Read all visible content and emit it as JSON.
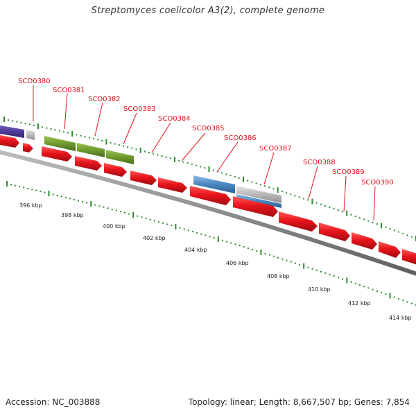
{
  "title": "Streptomyces coelicolor A3(2), complete genome",
  "footer": {
    "accession_label": "Accession:",
    "accession": "NC_003888",
    "topology_label": "Topology:",
    "topology": "linear",
    "length_label": "Length:",
    "length": "8,667,507 bp",
    "genes_label": "Genes:",
    "genes": "7,854"
  },
  "colors": {
    "gene_label": "#e3101a",
    "backbone": "#8c8c8c",
    "tick": "#2b8a2b",
    "red_gene": "#e8151c",
    "green_feature": "#6f9a2e",
    "blue_feature": "#4a86bf",
    "gray_feature": "#b8b8b8",
    "purple_feature": "#4f3a9a"
  },
  "gene_labels": [
    "SCO0380",
    "SCO0381",
    "SCO0382",
    "SCO0383",
    "SCO0384",
    "SCO0385",
    "SCO0386",
    "SCO0387",
    "SCO0388",
    "SCO0389",
    "SCO0390"
  ],
  "tick_labels": [
    "396 kbp",
    "398 kbp",
    "400 kbp",
    "402 kbp",
    "404 kbp",
    "406 kbp",
    "408 kbp",
    "410 kbp",
    "412 kbp",
    "414 kbp"
  ]
}
